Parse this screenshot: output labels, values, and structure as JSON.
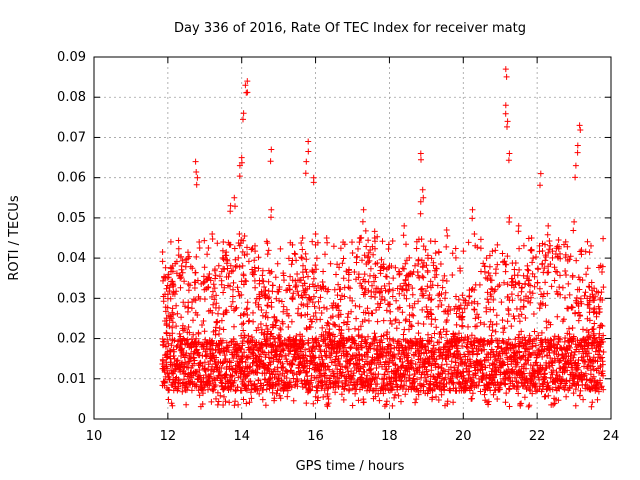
{
  "chart_data": {
    "type": "scatter",
    "title": "Day 336 of 2016, Rate Of TEC Index for receiver matg",
    "xlabel": "GPS time / hours",
    "ylabel": "ROTI / TECUs",
    "xlim": [
      10,
      24
    ],
    "ylim": [
      0,
      0.09
    ],
    "x_ticks": [
      10,
      12,
      14,
      16,
      18,
      20,
      22,
      24
    ],
    "x_tick_labels": [
      "10",
      "12",
      "14",
      "16",
      "18",
      "20",
      "22",
      "24"
    ],
    "y_ticks": [
      0,
      0.01,
      0.02,
      0.03,
      0.04,
      0.05,
      0.06,
      0.07,
      0.08,
      0.09
    ],
    "y_tick_labels": [
      "0",
      "0.01",
      "0.02",
      "0.03",
      "0.04",
      "0.05",
      "0.06",
      "0.07",
      "0.08",
      "0.09"
    ],
    "grid": true,
    "marker": "+",
    "series_color": "#ff0000",
    "data_range_x": [
      11.85,
      23.8
    ],
    "baseline_band": [
      0.007,
      0.02
    ],
    "peaks": [
      {
        "x": 12.0,
        "y": 0.031
      },
      {
        "x": 12.55,
        "y": 0.029
      },
      {
        "x": 12.75,
        "y": 0.064
      },
      {
        "x": 12.8,
        "y": 0.06
      },
      {
        "x": 12.85,
        "y": 0.044
      },
      {
        "x": 13.2,
        "y": 0.046
      },
      {
        "x": 13.5,
        "y": 0.044
      },
      {
        "x": 13.7,
        "y": 0.053
      },
      {
        "x": 13.8,
        "y": 0.055
      },
      {
        "x": 13.95,
        "y": 0.063
      },
      {
        "x": 14.0,
        "y": 0.065
      },
      {
        "x": 14.05,
        "y": 0.076
      },
      {
        "x": 14.1,
        "y": 0.083
      },
      {
        "x": 14.15,
        "y": 0.084
      },
      {
        "x": 14.8,
        "y": 0.067
      },
      {
        "x": 14.8,
        "y": 0.052
      },
      {
        "x": 15.65,
        "y": 0.045
      },
      {
        "x": 15.75,
        "y": 0.064
      },
      {
        "x": 15.8,
        "y": 0.069
      },
      {
        "x": 15.95,
        "y": 0.06
      },
      {
        "x": 16.0,
        "y": 0.046
      },
      {
        "x": 16.3,
        "y": 0.045
      },
      {
        "x": 17.3,
        "y": 0.052
      },
      {
        "x": 17.2,
        "y": 0.045
      },
      {
        "x": 17.6,
        "y": 0.045
      },
      {
        "x": 18.4,
        "y": 0.048
      },
      {
        "x": 18.85,
        "y": 0.066
      },
      {
        "x": 18.9,
        "y": 0.057
      },
      {
        "x": 18.85,
        "y": 0.054
      },
      {
        "x": 19.55,
        "y": 0.047
      },
      {
        "x": 20.25,
        "y": 0.052
      },
      {
        "x": 20.3,
        "y": 0.046
      },
      {
        "x": 21.15,
        "y": 0.087
      },
      {
        "x": 21.15,
        "y": 0.078
      },
      {
        "x": 21.2,
        "y": 0.074
      },
      {
        "x": 21.25,
        "y": 0.066
      },
      {
        "x": 21.25,
        "y": 0.05
      },
      {
        "x": 21.5,
        "y": 0.048
      },
      {
        "x": 21.85,
        "y": 0.045
      },
      {
        "x": 22.1,
        "y": 0.061
      },
      {
        "x": 22.3,
        "y": 0.048
      },
      {
        "x": 23.0,
        "y": 0.049
      },
      {
        "x": 23.05,
        "y": 0.063
      },
      {
        "x": 23.1,
        "y": 0.068
      },
      {
        "x": 23.15,
        "y": 0.073
      },
      {
        "x": 23.2,
        "y": 0.042
      },
      {
        "x": 23.5,
        "y": 0.031
      }
    ]
  }
}
